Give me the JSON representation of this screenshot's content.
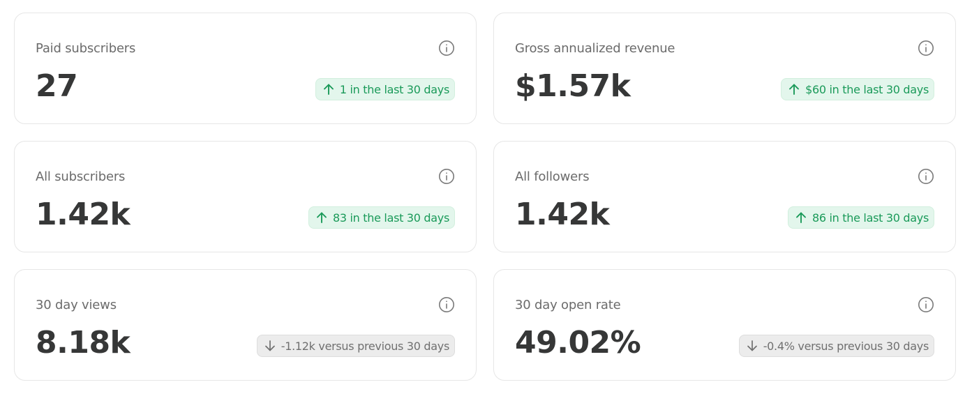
{
  "colors": {
    "positive": "#1a9a59",
    "positive_bg": "#e3f6ec",
    "neutral": "#707070",
    "neutral_bg": "#ececec",
    "value_text": "#363737",
    "label_text": "#6b6b6b"
  },
  "cards": [
    {
      "label": "Paid subscribers",
      "value": "27",
      "change": "1 in the last 30 days",
      "trend": "up",
      "trend_icon": "arrow-up-icon",
      "info_icon": "info-icon"
    },
    {
      "label": "Gross annualized revenue",
      "value": "$1.57k",
      "change": "$60 in the last 30 days",
      "trend": "up",
      "trend_icon": "arrow-up-icon",
      "info_icon": "info-icon"
    },
    {
      "label": "All subscribers",
      "value": "1.42k",
      "change": "83 in the last 30 days",
      "trend": "up",
      "trend_icon": "arrow-up-icon",
      "info_icon": "info-icon"
    },
    {
      "label": "All followers",
      "value": "1.42k",
      "change": "86 in the last 30 days",
      "trend": "up",
      "trend_icon": "arrow-up-icon",
      "info_icon": "info-icon"
    },
    {
      "label": "30 day views",
      "value": "8.18k",
      "change": "-1.12k versus previous 30 days",
      "trend": "down",
      "trend_icon": "arrow-down-icon",
      "info_icon": "info-icon"
    },
    {
      "label": "30 day open rate",
      "value": "49.02%",
      "change": "-0.4% versus previous 30 days",
      "trend": "down",
      "trend_icon": "arrow-down-icon",
      "info_icon": "info-icon"
    }
  ]
}
